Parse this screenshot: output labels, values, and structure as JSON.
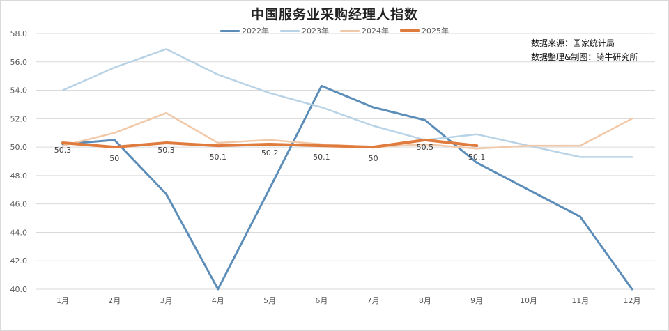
{
  "chart_data": {
    "type": "line",
    "title": "中国服务业采购经理人指数",
    "xlabel": "",
    "ylabel": "",
    "ylim": [
      40.0,
      58.0
    ],
    "yticks": [
      "40.0",
      "42.0",
      "44.0",
      "46.0",
      "48.0",
      "50.0",
      "52.0",
      "54.0",
      "56.0",
      "58.0"
    ],
    "grid": true,
    "legend_position": "top",
    "categories": [
      "1月",
      "2月",
      "3月",
      "4月",
      "5月",
      "6月",
      "7月",
      "8月",
      "9月",
      "10月",
      "11月",
      "12月"
    ],
    "series": [
      {
        "name": "2022年",
        "color": "#5b8db8",
        "width": 3,
        "values": [
          50.2,
          50.5,
          46.7,
          40.0,
          47.1,
          54.3,
          52.8,
          51.9,
          48.9,
          47.0,
          45.1,
          39.4
        ]
      },
      {
        "name": "2023年",
        "color": "#b8d2e6",
        "width": 2.5,
        "values": [
          54.0,
          55.6,
          56.9,
          55.1,
          53.8,
          52.8,
          51.5,
          50.5,
          50.9,
          50.1,
          49.3,
          49.3
        ]
      },
      {
        "name": "2024年",
        "color": "#f2c9a8",
        "width": 2.5,
        "values": [
          50.1,
          51.0,
          52.4,
          50.3,
          50.5,
          50.2,
          50.0,
          50.2,
          49.9,
          50.1,
          50.1,
          52.0
        ]
      },
      {
        "name": "2025年",
        "color": "#e07b3e",
        "width": 4,
        "values": [
          50.3,
          50.0,
          50.3,
          50.1,
          50.2,
          50.1,
          50.0,
          50.5,
          50.1
        ]
      }
    ],
    "annotations": [
      {
        "series": "2025年",
        "labels": [
          "50.3",
          "50",
          "50.3",
          "50.1",
          "50.2",
          "50.1",
          "50",
          "50.5",
          "50.1"
        ]
      }
    ]
  },
  "header": {
    "title": "中国服务业采购经理人指数"
  },
  "legend": {
    "items": [
      {
        "label": "2022年",
        "color": "#5b8db8"
      },
      {
        "label": "2023年",
        "color": "#b8d2e6"
      },
      {
        "label": "2024年",
        "color": "#f2c9a8"
      },
      {
        "label": "2025年",
        "color": "#e07b3e"
      }
    ]
  },
  "source": {
    "line1": "数据来源：国家统计局",
    "line2": "数据整理&制图：骑牛研究所"
  }
}
